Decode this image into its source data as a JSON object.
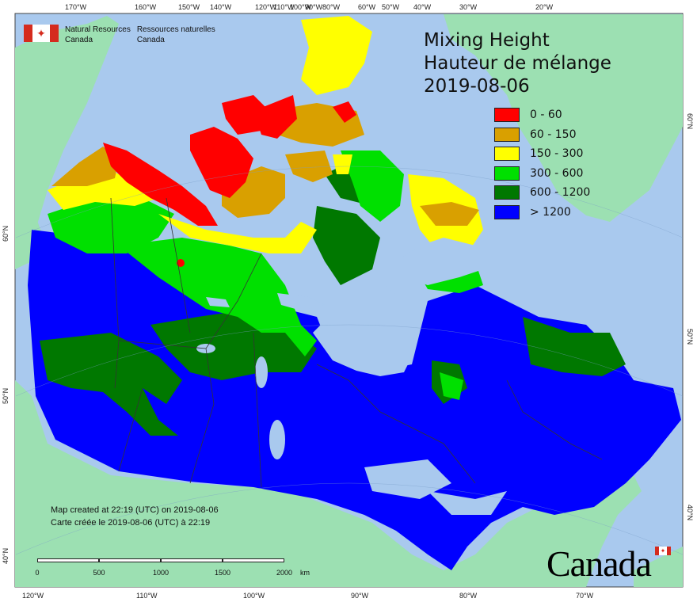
{
  "org": {
    "name_en_line1": "Natural Resources",
    "name_en_line2": "Canada",
    "name_fr_line1": "Ressources naturelles",
    "name_fr_line2": "Canada"
  },
  "title": {
    "line1": "Mixing Height",
    "line2": "Hauteur de mélange",
    "date": "2019-08-06"
  },
  "legend": [
    {
      "label": "0 - 60",
      "color": "#ff0000"
    },
    {
      "label": "60 - 150",
      "color": "#d9a000"
    },
    {
      "label": "150 - 300",
      "color": "#ffff00"
    },
    {
      "label": "300 - 600",
      "color": "#00e000"
    },
    {
      "label": "600 - 1200",
      "color": "#007800"
    },
    {
      "label": "> 1200",
      "color": "#0000ff"
    }
  ],
  "credits": {
    "line_en": "Map created at 22:19 (UTC) on 2019-08-06",
    "line_fr": "Carte créée le 2019-08-06 (UTC) à 22:19"
  },
  "scale_bar": {
    "labels": [
      "0",
      "500",
      "1000",
      "1500",
      "2000"
    ],
    "unit": "km"
  },
  "graticule": {
    "top": [
      "170°W",
      "160°W",
      "150°W",
      "140°W",
      "120°W",
      "110°W",
      "100°W",
      "90°W",
      "80°W",
      "60°W",
      "50°W",
      "40°W",
      "30°W",
      "20°W"
    ],
    "bottom": [
      "120°W",
      "110°W",
      "100°W",
      "90°W",
      "80°W",
      "70°W"
    ],
    "left": [
      "60°N",
      "50°N",
      "40°N"
    ],
    "right": [
      "60°N",
      "50°N",
      "40°N"
    ]
  },
  "wordmark": "Canada",
  "colors": {
    "ocean": "#a9c9ee",
    "land_outside": "#9ce0b2",
    "lake": "#a9c9ee",
    "border": "#333333"
  }
}
